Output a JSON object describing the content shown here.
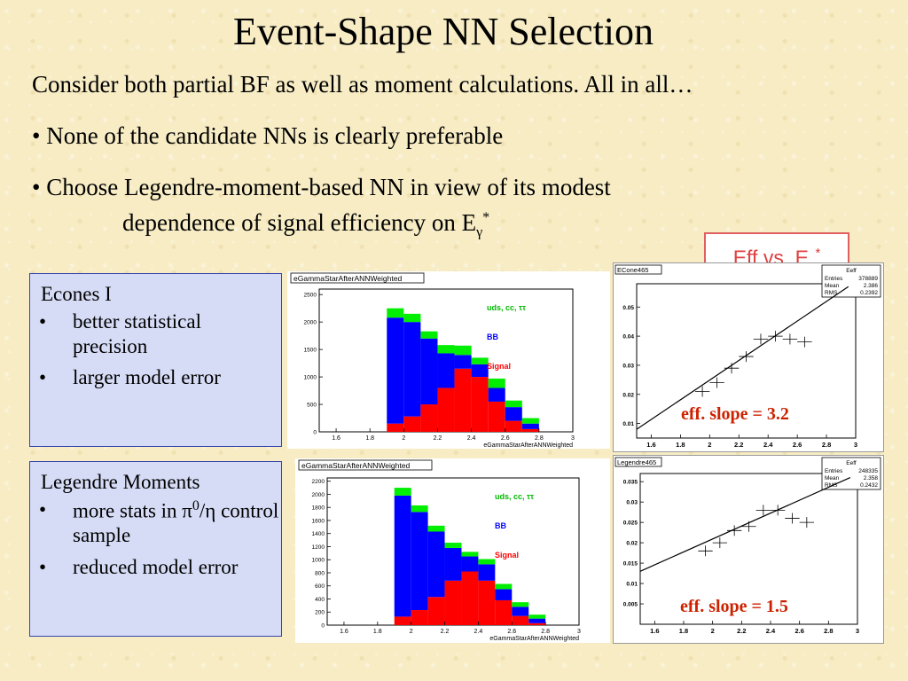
{
  "title": "Event-Shape NN Selection",
  "intro": "Consider both partial BF as well as moment calculations. All in all…",
  "bullet1": "• None of the candidate NNs is clearly preferable",
  "bullet2_a": "• Choose Legendre-moment-based NN in view of its modest",
  "bullet2_b": "dependence of signal efficiency on E",
  "bullet2_sub": "γ",
  "bullet2_sup": "*",
  "box1": {
    "heading": "Econes I",
    "items": [
      "better statistical precision",
      "larger model error"
    ]
  },
  "box2": {
    "heading": "Legendre Moments",
    "item1_a": "more stats in  π",
    "item1_sup": "0",
    "item1_b": "/η control sample",
    "item2": "reduced model error"
  },
  "eff_label": "Eff vs. E",
  "eff_sub": "γ",
  "eff_sup": "*",
  "slope1": "eff. slope = 3.2",
  "slope2": "eff. slope = 1.5",
  "colors": {
    "signal": "#ff0000",
    "bb": "#0000ff",
    "uds": "#00ee00",
    "box_border": "#3344aa",
    "eff_border": "#e06060"
  },
  "chart_data": [
    {
      "type": "bar",
      "title": "eGammaStarAfterANNWeighted",
      "xlabel": "eGammaStarAfterANNWeighted",
      "xticks": [
        "1.6",
        "1.8",
        "2",
        "2.2",
        "2.4",
        "2.6",
        "2.8",
        "3"
      ],
      "yticks": [
        "0",
        "500",
        "1000",
        "1500",
        "2000",
        "2500"
      ],
      "xlim": [
        1.5,
        3.0
      ],
      "ylim": [
        0,
        2600
      ],
      "bin_edges": [
        1.9,
        2.0,
        2.1,
        2.2,
        2.3,
        2.4,
        2.5,
        2.6,
        2.7,
        2.8
      ],
      "legend": [
        "uds, cc, ττ",
        "BB",
        "Signal"
      ],
      "series": [
        {
          "name": "Signal",
          "values": [
            150,
            280,
            500,
            800,
            1150,
            1000,
            550,
            200,
            50
          ]
        },
        {
          "name": "BB",
          "values": [
            1930,
            1720,
            1200,
            630,
            250,
            230,
            250,
            250,
            100
          ]
        },
        {
          "name": "uds, cc, ττ",
          "values": [
            170,
            150,
            130,
            150,
            170,
            120,
            170,
            120,
            100
          ]
        }
      ]
    },
    {
      "type": "bar",
      "title": "eGammaStarAfterANNWeighted",
      "xlabel": "eGammaStarAfterANNWeighted",
      "xticks": [
        "1.6",
        "1.8",
        "2",
        "2.2",
        "2.4",
        "2.6",
        "2.8",
        "3"
      ],
      "yticks": [
        "0",
        "200",
        "400",
        "600",
        "800",
        "1000",
        "1200",
        "1400",
        "1600",
        "1800",
        "2000",
        "2200"
      ],
      "xlim": [
        1.5,
        3.0
      ],
      "ylim": [
        0,
        2250
      ],
      "bin_edges": [
        1.9,
        2.0,
        2.1,
        2.2,
        2.3,
        2.4,
        2.5,
        2.6,
        2.7,
        2.8
      ],
      "legend": [
        "uds, cc, ττ",
        "BB",
        "Signal"
      ],
      "series": [
        {
          "name": "Signal",
          "values": [
            130,
            230,
            430,
            680,
            820,
            680,
            380,
            140,
            30
          ]
        },
        {
          "name": "BB",
          "values": [
            1850,
            1500,
            1000,
            500,
            230,
            250,
            170,
            140,
            70
          ]
        },
        {
          "name": "uds, cc, ττ",
          "values": [
            120,
            100,
            90,
            80,
            70,
            80,
            80,
            70,
            60
          ]
        }
      ]
    },
    {
      "type": "scatter",
      "title": "ECone465",
      "stats": {
        "title": "Eeff",
        "rows": [
          [
            "Entries",
            "378889"
          ],
          [
            "Mean",
            "2.386"
          ],
          [
            "RMS",
            "0.2392"
          ]
        ]
      },
      "xticks": [
        "1.6",
        "1.8",
        "2",
        "2.2",
        "2.4",
        "2.6",
        "2.8",
        "3"
      ],
      "yticks": [
        "0.01",
        "0.02",
        "0.03",
        "0.04",
        "0.05"
      ],
      "xlim": [
        1.5,
        3.0
      ],
      "ylim": [
        0.005,
        0.058
      ],
      "x": [
        1.95,
        2.05,
        2.15,
        2.25,
        2.35,
        2.45,
        2.55,
        2.65
      ],
      "y": [
        0.021,
        0.024,
        0.029,
        0.033,
        0.039,
        0.04,
        0.039,
        0.038
      ],
      "fit": {
        "x": [
          1.5,
          2.95
        ],
        "y": [
          0.008,
          0.057
        ]
      }
    },
    {
      "type": "scatter",
      "title": "Legendre465",
      "stats": {
        "title": "Eeff",
        "rows": [
          [
            "Entries",
            "248335"
          ],
          [
            "Mean",
            "2.358"
          ],
          [
            "RMS",
            "0.2432"
          ]
        ]
      },
      "xticks": [
        "1.6",
        "1.8",
        "2",
        "2.2",
        "2.4",
        "2.6",
        "2.8",
        "3"
      ],
      "yticks": [
        "0.005",
        "0.01",
        "0.015",
        "0.02",
        "0.025",
        "0.03",
        "0.035"
      ],
      "xlim": [
        1.5,
        3.0
      ],
      "ylim": [
        0.0,
        0.037
      ],
      "x": [
        1.95,
        2.05,
        2.15,
        2.25,
        2.35,
        2.45,
        2.55,
        2.65
      ],
      "y": [
        0.018,
        0.02,
        0.023,
        0.024,
        0.028,
        0.028,
        0.026,
        0.025
      ],
      "fit": {
        "x": [
          1.5,
          2.95
        ],
        "y": [
          0.013,
          0.036
        ]
      }
    }
  ]
}
